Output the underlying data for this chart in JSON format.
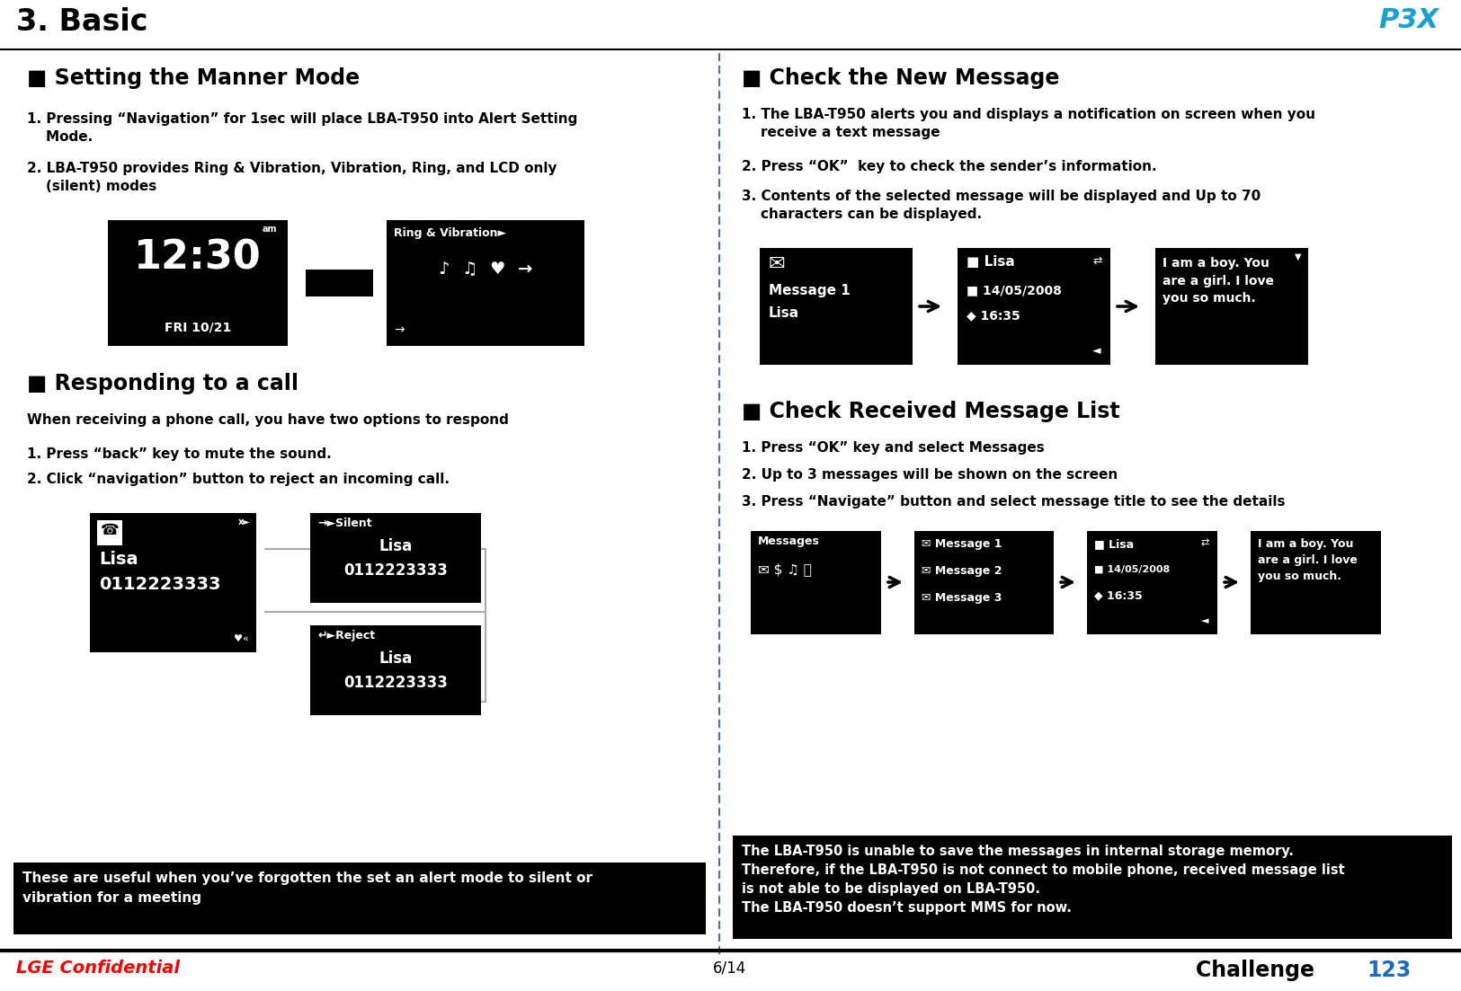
{
  "title": "3. Basic",
  "footer_left": "LGE Confidential",
  "footer_center": "6/14",
  "footer_right_black": "Challenge ",
  "footer_right_blue": "123",
  "bg_color": "#ffffff",
  "section1_title": "■ Setting the Manner Mode",
  "section1_item1": "1. Pressing “Navigation” for 1sec will place LBA-T950 into Alert Setting\n    Mode.",
  "section1_item2": "2. LBA-T950 provides Ring & Vibration, Vibration, Ring, and LCD only\n    (silent) modes",
  "section2_title": "■ Responding to a call",
  "section2_intro": "When receiving a phone call, you have two options to respond",
  "section2_item1": "1. Press “back” key to mute the sound.",
  "section2_item2": "2. Click “navigation” button to reject an incoming call.",
  "section3_title": "■ Check the New Message",
  "section3_item1": "1. The LBA-T950 alerts you and displays a notification on screen when you\n    receive a text message",
  "section3_item2": "2. Press “OK”  key to check the sender’s information.",
  "section3_item3": "3. Contents of the selected message will be displayed and Up to 70\n    characters can be displayed.",
  "section4_title": "■ Check Received Message List",
  "section4_item1": "1. Press “OK” key and select Messages",
  "section4_item2": "2. Up to 3 messages will be shown on the screen",
  "section4_item3": "3. Press “Navigate” button and select message title to see the details",
  "note_text": "The LBA-T950 is unable to save the messages in internal storage memory.\nTherefore, if the LBA-T950 is not connect to mobile phone, received message list\nis not able to be displayed on LBA-T950.\nThe LBA-T950 doesn’t support MMS for now.",
  "tip_text": "These are useful when you’ve forgotten the set an alert mode to silent or\nvibration for a meeting"
}
